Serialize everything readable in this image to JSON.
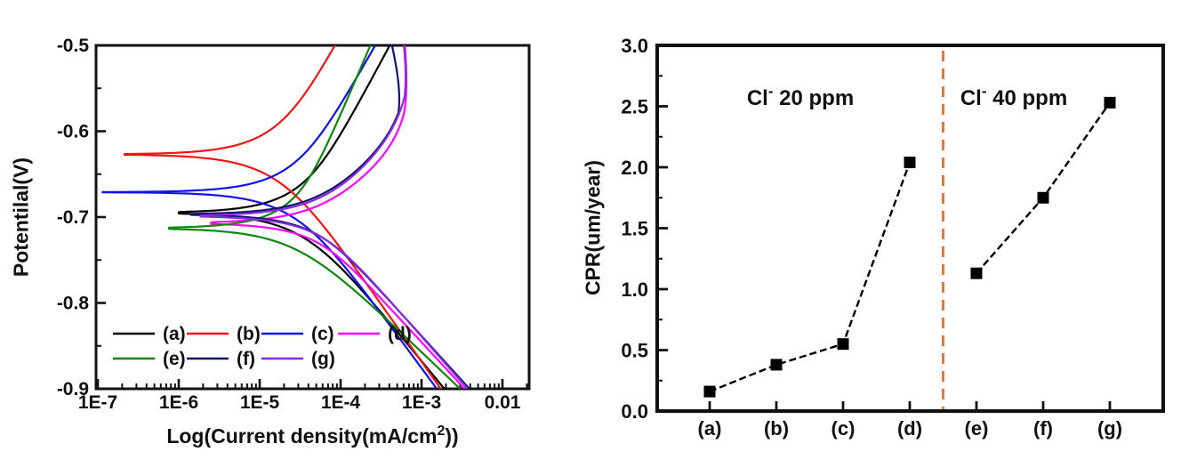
{
  "figure": {
    "background": "#ffffff",
    "text_color": "#111111"
  },
  "chart_data": [
    {
      "id": "polarization",
      "type": "line",
      "title": "",
      "xlabel": "Log(Current density(mA/cm2))",
      "xlabel_parts": {
        "main": "Log(Current density(mA/cm",
        "sup": "2",
        "end": "))"
      },
      "ylabel": "Potentilal(V)",
      "xlim_log": [
        -7.022,
        -1.67
      ],
      "ylim": [
        -0.9,
        -0.5
      ],
      "x_ticks": [
        {
          "log": -7,
          "label": "1E-7"
        },
        {
          "log": -6,
          "label": "1E-6"
        },
        {
          "log": -5,
          "label": "1E-5"
        },
        {
          "log": -4,
          "label": "1E-4"
        },
        {
          "log": -3,
          "label": "1E-3"
        },
        {
          "log": -2,
          "label": "0.01"
        }
      ],
      "y_ticks": [
        {
          "v": -0.5,
          "label": "-0.5"
        },
        {
          "v": -0.6,
          "label": "-0.6"
        },
        {
          "v": -0.7,
          "label": "-0.7"
        },
        {
          "v": -0.8,
          "label": "-0.8"
        },
        {
          "v": -0.9,
          "label": "-0.9"
        }
      ],
      "y_minor_step": 0.05,
      "grid": false,
      "legend_position": "lower-left-inside",
      "legend_rows": [
        [
          "a",
          "b",
          "c",
          "d"
        ],
        [
          "e",
          "f",
          "g"
        ]
      ],
      "series": [
        {
          "key": "a",
          "label": "(a)",
          "color": "#000000",
          "ecorr": -0.695,
          "log_icorr": -4.5,
          "ba": 0.176,
          "bc": 0.115,
          "log_imin": -6.0
        },
        {
          "key": "b",
          "label": "(b)",
          "color": "#f01515",
          "ecorr": -0.627,
          "log_icorr": -4.8,
          "ba": 0.172,
          "bc": 0.134,
          "log_imin": -6.67
        },
        {
          "key": "c",
          "label": "(c)",
          "color": "#1010f0",
          "ecorr": -0.671,
          "log_icorr": -4.6,
          "ba": 0.166,
          "bc": 0.128,
          "log_imin": -7.05
        },
        {
          "key": "d",
          "label": "(d)",
          "color": "#ff00ff",
          "ecorr": -0.708,
          "log_icorr": -4.35,
          "ba": 0.07,
          "bc": 0.102,
          "log_imin": -5.6,
          "alim": -3.12,
          "apass_eta": 0.13,
          "apass_slope": 1.0
        },
        {
          "key": "e",
          "label": "(e)",
          "color": "#0c870c",
          "ecorr": -0.713,
          "log_icorr": -4.6,
          "ba": 0.22,
          "bc": 0.09,
          "log_imin": -6.12
        },
        {
          "key": "f",
          "label": "(f)",
          "color": "#121270",
          "ecorr": -0.698,
          "log_icorr": -4.35,
          "ba": 0.075,
          "bc": 0.104,
          "log_imin": -5.85,
          "alim": -3.13,
          "apass_eta": 0.12,
          "apass_slope": 2.8
        },
        {
          "key": "g",
          "label": "(g)",
          "color": "#8a2be2",
          "ecorr": -0.7,
          "log_icorr": -4.3,
          "ba": 0.08,
          "bc": 0.107,
          "log_imin": -5.73,
          "alim": -3.1,
          "apass_eta": 0.14,
          "apass_slope": 1.6
        }
      ]
    },
    {
      "id": "cpr",
      "type": "scatter",
      "title": "",
      "xlabel": "",
      "ylabel": "CPR(um/year)",
      "ylim": [
        0,
        3.0
      ],
      "y_ticks": [
        {
          "v": 0.0,
          "label": "0.0"
        },
        {
          "v": 0.5,
          "label": "0.5"
        },
        {
          "v": 1.0,
          "label": "1.0"
        },
        {
          "v": 1.5,
          "label": "1.5"
        },
        {
          "v": 2.0,
          "label": "2.0"
        },
        {
          "v": 2.5,
          "label": "2.5"
        },
        {
          "v": 3.0,
          "label": "3.0"
        }
      ],
      "y_minor_step": 0.25,
      "categories": [
        "(a)",
        "(b)",
        "(c)",
        "(d)",
        "(e)",
        "(f)",
        "(g)"
      ],
      "marker": {
        "shape": "square",
        "color": "#000000",
        "size": 13
      },
      "line_style": {
        "color": "#000000",
        "dashed": true
      },
      "series": [
        {
          "name": "Cl- 20 ppm",
          "cat_indices": [
            0,
            1,
            2,
            3
          ],
          "values": [
            0.16,
            0.38,
            0.55,
            2.04
          ]
        },
        {
          "name": "Cl- 40 ppm",
          "cat_indices": [
            4,
            5,
            6
          ],
          "values": [
            1.13,
            1.75,
            2.53
          ]
        }
      ],
      "annotations": [
        {
          "base": "Cl",
          "sup": "-",
          "rest": " 20 ppm"
        },
        {
          "base": "Cl",
          "sup": "-",
          "rest": " 40 ppm"
        }
      ],
      "separator": {
        "color": "#e2793e",
        "style": "dashed",
        "between": [
          "(d)",
          "(e)"
        ]
      }
    }
  ]
}
